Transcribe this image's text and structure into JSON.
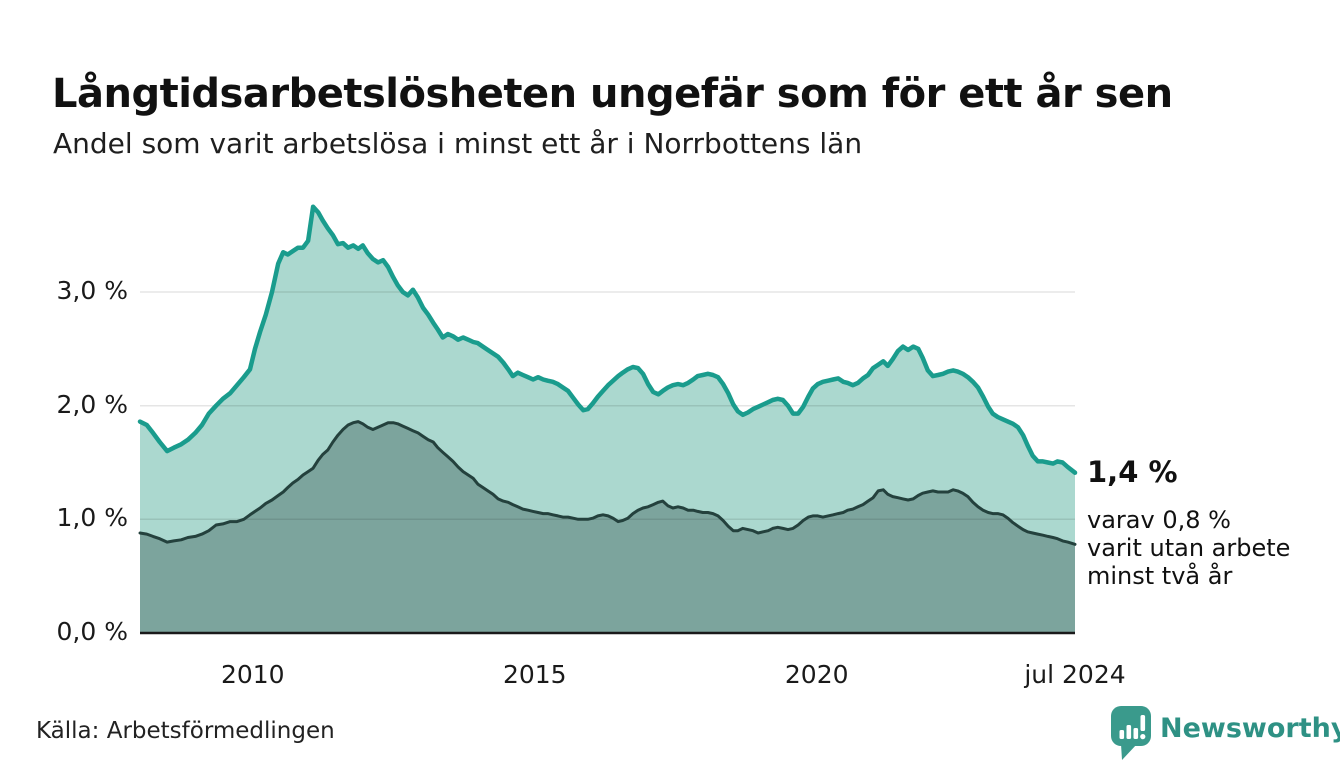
{
  "header": {
    "title": "Långtidsarbetslösheten ungefär som för ett år sen",
    "subtitle": "Andel som varit arbetslösa i minst ett år i Norrbottens län"
  },
  "annotation": {
    "value_label": "1,4 %",
    "detail_lines": [
      "varav 0,8 %",
      "varit utan arbete",
      "minst två år"
    ]
  },
  "footer": {
    "source": "Källa: Arbetsförmedlingen",
    "brand": "Newsworthy"
  },
  "colors": {
    "line_total": "#1a9c8d",
    "fill_total": "#abd8cf",
    "line_two_plus": "#24413d",
    "fill_two_plus": "#7ca49d",
    "baseline": "#1a1a1a",
    "grid": "rgba(0,0,0,0.10)",
    "brand_teal": "#2e9184",
    "logo_bubble": "#3a9a8c"
  },
  "chart_data": {
    "type": "area",
    "title": "Långtidsarbetslösheten ungefär som för ett år sen",
    "subtitle": "Andel som varit arbetslösa i minst ett år i Norrbottens län",
    "xlabel": "",
    "ylabel": "",
    "grid": "horizontal",
    "legend": "none",
    "x_domain": [
      2008.0,
      2024.58
    ],
    "y_domain": [
      0,
      3.9
    ],
    "y_ticks": [
      {
        "value": 0,
        "label": "0,0 %"
      },
      {
        "value": 1,
        "label": "1,0 %"
      },
      {
        "value": 2,
        "label": "2,0 %"
      },
      {
        "value": 3,
        "label": "3,0 %"
      }
    ],
    "x_ticks": [
      {
        "value": 2010,
        "label": "2010"
      },
      {
        "value": 2015,
        "label": "2015"
      },
      {
        "value": 2020,
        "label": "2020"
      },
      {
        "value": 2024.58,
        "label": "jul 2024"
      }
    ],
    "x": [
      2008.0,
      2008.12,
      2008.23,
      2008.35,
      2008.48,
      2008.6,
      2008.73,
      2008.85,
      2008.98,
      2009.1,
      2009.22,
      2009.35,
      2009.47,
      2009.6,
      2009.72,
      2009.84,
      2009.95,
      2010.04,
      2010.13,
      2010.23,
      2010.34,
      2010.45,
      2010.54,
      2010.62,
      2010.71,
      2010.8,
      2010.89,
      2010.98,
      2011.07,
      2011.16,
      2011.24,
      2011.33,
      2011.42,
      2011.51,
      2011.6,
      2011.69,
      2011.78,
      2011.87,
      2011.95,
      2012.04,
      2012.13,
      2012.22,
      2012.31,
      2012.4,
      2012.49,
      2012.57,
      2012.66,
      2012.75,
      2012.84,
      2012.93,
      2013.02,
      2013.11,
      2013.2,
      2013.28,
      2013.37,
      2013.46,
      2013.55,
      2013.64,
      2013.73,
      2013.82,
      2013.91,
      2013.99,
      2014.08,
      2014.17,
      2014.26,
      2014.35,
      2014.44,
      2014.53,
      2014.61,
      2014.7,
      2014.79,
      2014.88,
      2014.97,
      2015.06,
      2015.15,
      2015.23,
      2015.32,
      2015.41,
      2015.5,
      2015.59,
      2015.68,
      2015.77,
      2015.86,
      2015.94,
      2016.03,
      2016.12,
      2016.21,
      2016.3,
      2016.39,
      2016.48,
      2016.56,
      2016.65,
      2016.74,
      2016.83,
      2016.92,
      2017.01,
      2017.1,
      2017.19,
      2017.27,
      2017.36,
      2017.45,
      2017.54,
      2017.63,
      2017.72,
      2017.81,
      2017.89,
      2017.98,
      2018.07,
      2018.16,
      2018.25,
      2018.34,
      2018.43,
      2018.52,
      2018.6,
      2018.69,
      2018.78,
      2018.87,
      2018.96,
      2019.05,
      2019.14,
      2019.22,
      2019.31,
      2019.4,
      2019.49,
      2019.58,
      2019.67,
      2019.76,
      2019.85,
      2019.93,
      2020.02,
      2020.11,
      2020.2,
      2020.29,
      2020.38,
      2020.47,
      2020.55,
      2020.64,
      2020.73,
      2020.82,
      2020.91,
      2021.0,
      2021.09,
      2021.18,
      2021.26,
      2021.35,
      2021.44,
      2021.53,
      2021.62,
      2021.71,
      2021.8,
      2021.88,
      2021.97,
      2022.06,
      2022.15,
      2022.24,
      2022.33,
      2022.42,
      2022.5,
      2022.59,
      2022.68,
      2022.77,
      2022.86,
      2022.95,
      2023.04,
      2023.12,
      2023.21,
      2023.3,
      2023.39,
      2023.48,
      2023.57,
      2023.66,
      2023.74,
      2023.83,
      2023.92,
      2024.01,
      2024.1,
      2024.19,
      2024.27,
      2024.36,
      2024.45,
      2024.58
    ],
    "series": [
      {
        "id": "total",
        "name": "minst ett år",
        "end_label": "1,4 %",
        "values": [
          1.86,
          1.83,
          1.76,
          1.68,
          1.6,
          1.63,
          1.66,
          1.7,
          1.76,
          1.83,
          1.93,
          2.0,
          2.06,
          2.11,
          2.18,
          2.25,
          2.32,
          2.5,
          2.65,
          2.8,
          3.0,
          3.25,
          3.35,
          3.33,
          3.36,
          3.39,
          3.39,
          3.45,
          3.75,
          3.7,
          3.63,
          3.56,
          3.5,
          3.42,
          3.43,
          3.39,
          3.41,
          3.38,
          3.41,
          3.34,
          3.29,
          3.26,
          3.28,
          3.22,
          3.13,
          3.06,
          3.0,
          2.97,
          3.02,
          2.95,
          2.86,
          2.8,
          2.73,
          2.67,
          2.6,
          2.63,
          2.61,
          2.58,
          2.6,
          2.58,
          2.56,
          2.55,
          2.52,
          2.49,
          2.46,
          2.43,
          2.38,
          2.32,
          2.26,
          2.29,
          2.27,
          2.25,
          2.23,
          2.25,
          2.23,
          2.22,
          2.21,
          2.19,
          2.16,
          2.13,
          2.07,
          2.01,
          1.96,
          1.97,
          2.02,
          2.08,
          2.13,
          2.18,
          2.22,
          2.26,
          2.29,
          2.32,
          2.34,
          2.33,
          2.28,
          2.19,
          2.12,
          2.1,
          2.13,
          2.16,
          2.18,
          2.19,
          2.18,
          2.2,
          2.23,
          2.26,
          2.27,
          2.28,
          2.27,
          2.25,
          2.19,
          2.11,
          2.01,
          1.95,
          1.92,
          1.94,
          1.97,
          1.99,
          2.01,
          2.03,
          2.05,
          2.06,
          2.05,
          2.0,
          1.93,
          1.93,
          1.99,
          2.08,
          2.15,
          2.19,
          2.21,
          2.22,
          2.23,
          2.24,
          2.21,
          2.2,
          2.18,
          2.2,
          2.24,
          2.27,
          2.33,
          2.36,
          2.39,
          2.35,
          2.41,
          2.48,
          2.52,
          2.49,
          2.52,
          2.5,
          2.42,
          2.31,
          2.26,
          2.27,
          2.28,
          2.3,
          2.31,
          2.3,
          2.28,
          2.25,
          2.21,
          2.16,
          2.08,
          1.99,
          1.93,
          1.9,
          1.88,
          1.86,
          1.84,
          1.81,
          1.74,
          1.65,
          1.56,
          1.51,
          1.51,
          1.5,
          1.49,
          1.51,
          1.5,
          1.46,
          1.41
        ]
      },
      {
        "id": "two_plus",
        "name": "minst två år",
        "end_label": "0,8 %",
        "values": [
          0.88,
          0.87,
          0.85,
          0.83,
          0.8,
          0.81,
          0.82,
          0.84,
          0.85,
          0.87,
          0.9,
          0.95,
          0.96,
          0.98,
          0.98,
          1.0,
          1.04,
          1.07,
          1.1,
          1.14,
          1.17,
          1.21,
          1.24,
          1.28,
          1.32,
          1.35,
          1.39,
          1.42,
          1.45,
          1.52,
          1.57,
          1.61,
          1.68,
          1.74,
          1.79,
          1.83,
          1.85,
          1.86,
          1.84,
          1.81,
          1.79,
          1.81,
          1.83,
          1.85,
          1.85,
          1.84,
          1.82,
          1.8,
          1.78,
          1.76,
          1.73,
          1.7,
          1.68,
          1.63,
          1.59,
          1.55,
          1.51,
          1.46,
          1.42,
          1.39,
          1.36,
          1.31,
          1.28,
          1.25,
          1.22,
          1.18,
          1.16,
          1.15,
          1.13,
          1.11,
          1.09,
          1.08,
          1.07,
          1.06,
          1.05,
          1.05,
          1.04,
          1.03,
          1.02,
          1.02,
          1.01,
          1.0,
          1.0,
          1.0,
          1.01,
          1.03,
          1.04,
          1.03,
          1.01,
          0.98,
          0.99,
          1.01,
          1.05,
          1.08,
          1.1,
          1.11,
          1.13,
          1.15,
          1.16,
          1.12,
          1.1,
          1.11,
          1.1,
          1.08,
          1.08,
          1.07,
          1.06,
          1.06,
          1.05,
          1.03,
          0.99,
          0.94,
          0.9,
          0.9,
          0.92,
          0.91,
          0.9,
          0.88,
          0.89,
          0.9,
          0.92,
          0.93,
          0.92,
          0.91,
          0.92,
          0.95,
          0.99,
          1.02,
          1.03,
          1.03,
          1.02,
          1.03,
          1.04,
          1.05,
          1.06,
          1.08,
          1.09,
          1.11,
          1.13,
          1.16,
          1.19,
          1.25,
          1.26,
          1.22,
          1.2,
          1.19,
          1.18,
          1.17,
          1.18,
          1.21,
          1.23,
          1.24,
          1.25,
          1.24,
          1.24,
          1.24,
          1.26,
          1.25,
          1.23,
          1.2,
          1.15,
          1.11,
          1.08,
          1.06,
          1.05,
          1.05,
          1.04,
          1.01,
          0.97,
          0.94,
          0.91,
          0.89,
          0.88,
          0.87,
          0.86,
          0.85,
          0.84,
          0.83,
          0.81,
          0.8,
          0.78
        ]
      }
    ]
  }
}
